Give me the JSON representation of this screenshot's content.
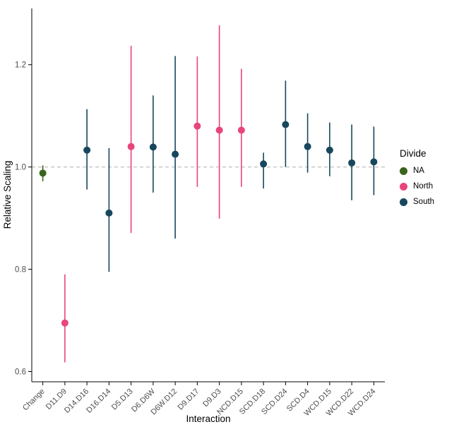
{
  "chart_data": {
    "type": "pointrange",
    "title": "",
    "xlabel": "Interaction",
    "ylabel": "Relative Scaling",
    "ylim": [
      0.58,
      1.31
    ],
    "yticks": [
      0.6,
      0.8,
      1.0,
      1.2
    ],
    "reference_line": 1.0,
    "grid": "off",
    "legend": {
      "title": "Divide",
      "position": "right",
      "entries": [
        {
          "label": "NA",
          "color": "#39641c"
        },
        {
          "label": "North",
          "color": "#e8457b"
        },
        {
          "label": "South",
          "color": "#17475d"
        }
      ]
    },
    "points": [
      {
        "category": "Change",
        "group": "NA",
        "estimate": 0.988,
        "lower": 0.972,
        "upper": 1.003
      },
      {
        "category": "D11.D9",
        "group": "North",
        "estimate": 0.695,
        "lower": 0.618,
        "upper": 0.79
      },
      {
        "category": "D14.D16",
        "group": "South",
        "estimate": 1.033,
        "lower": 0.956,
        "upper": 1.113
      },
      {
        "category": "D16.D14",
        "group": "South",
        "estimate": 0.91,
        "lower": 0.795,
        "upper": 1.037
      },
      {
        "category": "D5.D13",
        "group": "North",
        "estimate": 1.04,
        "lower": 0.871,
        "upper": 1.237
      },
      {
        "category": "D6.D6W",
        "group": "South",
        "estimate": 1.039,
        "lower": 0.95,
        "upper": 1.14
      },
      {
        "category": "D6W.D12",
        "group": "South",
        "estimate": 1.025,
        "lower": 0.86,
        "upper": 1.217
      },
      {
        "category": "D9.D17",
        "group": "North",
        "estimate": 1.08,
        "lower": 0.961,
        "upper": 1.216
      },
      {
        "category": "D9.D3",
        "group": "North",
        "estimate": 1.072,
        "lower": 0.899,
        "upper": 1.277
      },
      {
        "category": "NCD.D15",
        "group": "North",
        "estimate": 1.072,
        "lower": 0.961,
        "upper": 1.192
      },
      {
        "category": "SCD.D18",
        "group": "South",
        "estimate": 1.006,
        "lower": 0.958,
        "upper": 1.028
      },
      {
        "category": "SCD.D24",
        "group": "South",
        "estimate": 1.083,
        "lower": 1.0,
        "upper": 1.169
      },
      {
        "category": "SCD.D4",
        "group": "South",
        "estimate": 1.04,
        "lower": 0.989,
        "upper": 1.105
      },
      {
        "category": "WCD.D15",
        "group": "South",
        "estimate": 1.033,
        "lower": 0.982,
        "upper": 1.087
      },
      {
        "category": "WCD.D22",
        "group": "South",
        "estimate": 1.008,
        "lower": 0.935,
        "upper": 1.083
      },
      {
        "category": "WCD.D24",
        "group": "South",
        "estimate": 1.01,
        "lower": 0.945,
        "upper": 1.079
      }
    ]
  }
}
